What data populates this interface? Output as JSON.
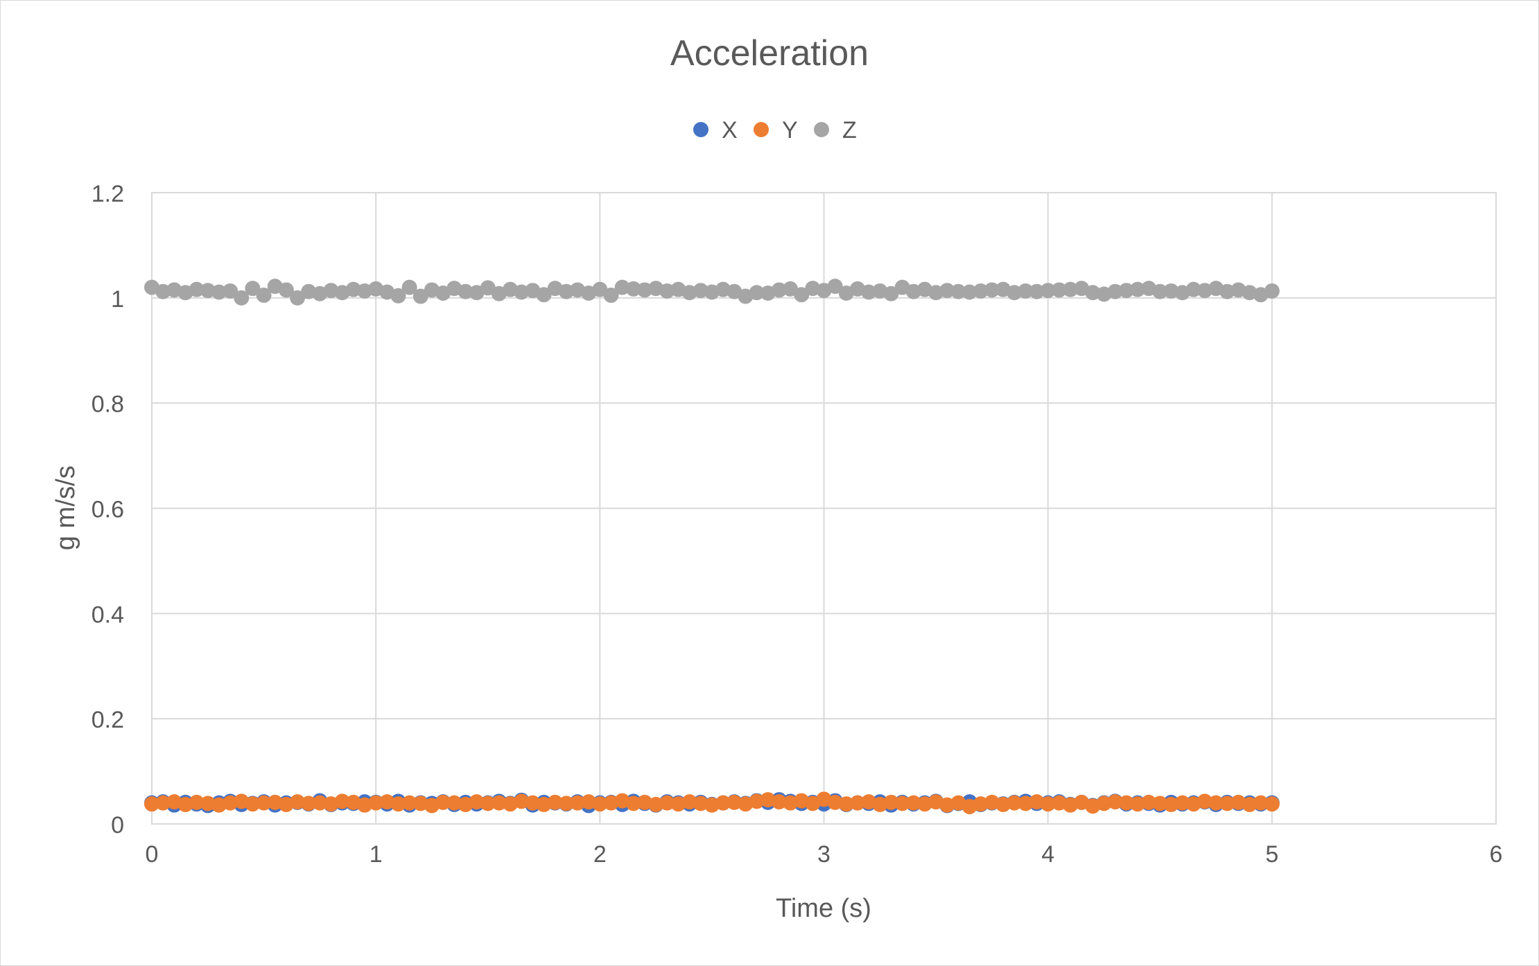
{
  "chart_data": {
    "type": "scatter",
    "title": "Acceleration",
    "xlabel": "Time (s)",
    "ylabel": "g m/s/s",
    "xlim": [
      0,
      6
    ],
    "ylim": [
      0,
      1.2
    ],
    "x_ticks": [
      "0",
      "1",
      "2",
      "3",
      "4",
      "5",
      "6"
    ],
    "y_ticks": [
      "0",
      "0.2",
      "0.4",
      "0.6",
      "0.8",
      "1",
      "1.2"
    ],
    "grid": true,
    "legend_position": "top-center",
    "x": [
      0.0,
      0.05,
      0.1,
      0.15,
      0.2,
      0.25,
      0.3,
      0.35,
      0.4,
      0.45,
      0.5,
      0.55,
      0.6,
      0.65,
      0.7,
      0.75,
      0.8,
      0.85,
      0.9,
      0.95,
      1.0,
      1.05,
      1.1,
      1.15,
      1.2,
      1.25,
      1.3,
      1.35,
      1.4,
      1.45,
      1.5,
      1.55,
      1.6,
      1.65,
      1.7,
      1.75,
      1.8,
      1.85,
      1.9,
      1.95,
      2.0,
      2.05,
      2.1,
      2.15,
      2.2,
      2.25,
      2.3,
      2.35,
      2.4,
      2.45,
      2.5,
      2.55,
      2.6,
      2.65,
      2.7,
      2.75,
      2.8,
      2.85,
      2.9,
      2.95,
      3.0,
      3.05,
      3.1,
      3.15,
      3.2,
      3.25,
      3.3,
      3.35,
      3.4,
      3.45,
      3.5,
      3.55,
      3.6,
      3.65,
      3.7,
      3.75,
      3.8,
      3.85,
      3.9,
      3.95,
      4.0,
      4.05,
      4.1,
      4.15,
      4.2,
      4.25,
      4.3,
      4.35,
      4.4,
      4.45,
      4.5,
      4.55,
      4.6,
      4.65,
      4.7,
      4.75,
      4.8,
      4.85,
      4.9,
      4.95,
      5.0
    ],
    "series": [
      {
        "name": "X",
        "color": "#4472c4",
        "values": [
          0.04,
          0.042,
          0.036,
          0.041,
          0.038,
          0.035,
          0.04,
          0.043,
          0.037,
          0.039,
          0.042,
          0.036,
          0.04,
          0.041,
          0.038,
          0.044,
          0.037,
          0.04,
          0.039,
          0.042,
          0.041,
          0.038,
          0.043,
          0.036,
          0.04,
          0.039,
          0.042,
          0.037,
          0.041,
          0.038,
          0.04,
          0.043,
          0.039,
          0.045,
          0.036,
          0.041,
          0.04,
          0.038,
          0.042,
          0.035,
          0.04,
          0.041,
          0.037,
          0.043,
          0.039,
          0.036,
          0.042,
          0.04,
          0.038,
          0.041,
          0.037,
          0.04,
          0.042,
          0.039,
          0.044,
          0.041,
          0.046,
          0.043,
          0.039,
          0.041,
          0.038,
          0.044,
          0.037,
          0.04,
          0.039,
          0.042,
          0.036,
          0.041,
          0.038,
          0.04,
          0.043,
          0.035,
          0.039,
          0.042,
          0.037,
          0.04,
          0.038,
          0.041,
          0.043,
          0.039,
          0.04,
          0.042,
          0.037,
          0.041,
          0.035,
          0.04,
          0.043,
          0.038,
          0.04,
          0.039,
          0.036,
          0.041,
          0.038,
          0.04,
          0.042,
          0.037,
          0.041,
          0.039,
          0.04,
          0.038,
          0.04
        ]
      },
      {
        "name": "Y",
        "color": "#ed7d31",
        "values": [
          0.038,
          0.04,
          0.042,
          0.037,
          0.041,
          0.039,
          0.036,
          0.04,
          0.043,
          0.038,
          0.04,
          0.041,
          0.037,
          0.042,
          0.039,
          0.04,
          0.038,
          0.043,
          0.041,
          0.036,
          0.04,
          0.042,
          0.038,
          0.04,
          0.039,
          0.035,
          0.041,
          0.04,
          0.037,
          0.042,
          0.039,
          0.04,
          0.038,
          0.043,
          0.04,
          0.037,
          0.041,
          0.039,
          0.04,
          0.042,
          0.038,
          0.04,
          0.044,
          0.039,
          0.041,
          0.037,
          0.04,
          0.038,
          0.042,
          0.039,
          0.036,
          0.04,
          0.041,
          0.038,
          0.043,
          0.046,
          0.042,
          0.04,
          0.044,
          0.039,
          0.047,
          0.041,
          0.038,
          0.04,
          0.042,
          0.037,
          0.041,
          0.039,
          0.04,
          0.038,
          0.042,
          0.036,
          0.04,
          0.033,
          0.038,
          0.041,
          0.037,
          0.04,
          0.039,
          0.042,
          0.038,
          0.04,
          0.036,
          0.041,
          0.034,
          0.039,
          0.042,
          0.04,
          0.038,
          0.041,
          0.039,
          0.037,
          0.04,
          0.038,
          0.043,
          0.04,
          0.039,
          0.041,
          0.037,
          0.04,
          0.038
        ]
      },
      {
        "name": "Z",
        "color": "#a5a5a5",
        "values": [
          1.02,
          1.012,
          1.015,
          1.01,
          1.016,
          1.014,
          1.011,
          1.013,
          1.0,
          1.018,
          1.005,
          1.022,
          1.015,
          1.0,
          1.012,
          1.008,
          1.014,
          1.01,
          1.016,
          1.013,
          1.017,
          1.011,
          1.004,
          1.02,
          1.003,
          1.015,
          1.009,
          1.018,
          1.012,
          1.01,
          1.019,
          1.008,
          1.016,
          1.011,
          1.014,
          1.006,
          1.018,
          1.012,
          1.015,
          1.009,
          1.016,
          1.005,
          1.02,
          1.017,
          1.015,
          1.018,
          1.013,
          1.016,
          1.01,
          1.014,
          1.011,
          1.016,
          1.012,
          1.003,
          1.01,
          1.009,
          1.015,
          1.017,
          1.006,
          1.018,
          1.014,
          1.022,
          1.009,
          1.017,
          1.011,
          1.013,
          1.008,
          1.02,
          1.012,
          1.016,
          1.01,
          1.014,
          1.012,
          1.011,
          1.013,
          1.015,
          1.016,
          1.01,
          1.013,
          1.012,
          1.014,
          1.015,
          1.016,
          1.018,
          1.01,
          1.007,
          1.012,
          1.014,
          1.016,
          1.018,
          1.012,
          1.013,
          1.01,
          1.016,
          1.014,
          1.018,
          1.012,
          1.015,
          1.01,
          1.006,
          1.013
        ]
      }
    ]
  }
}
